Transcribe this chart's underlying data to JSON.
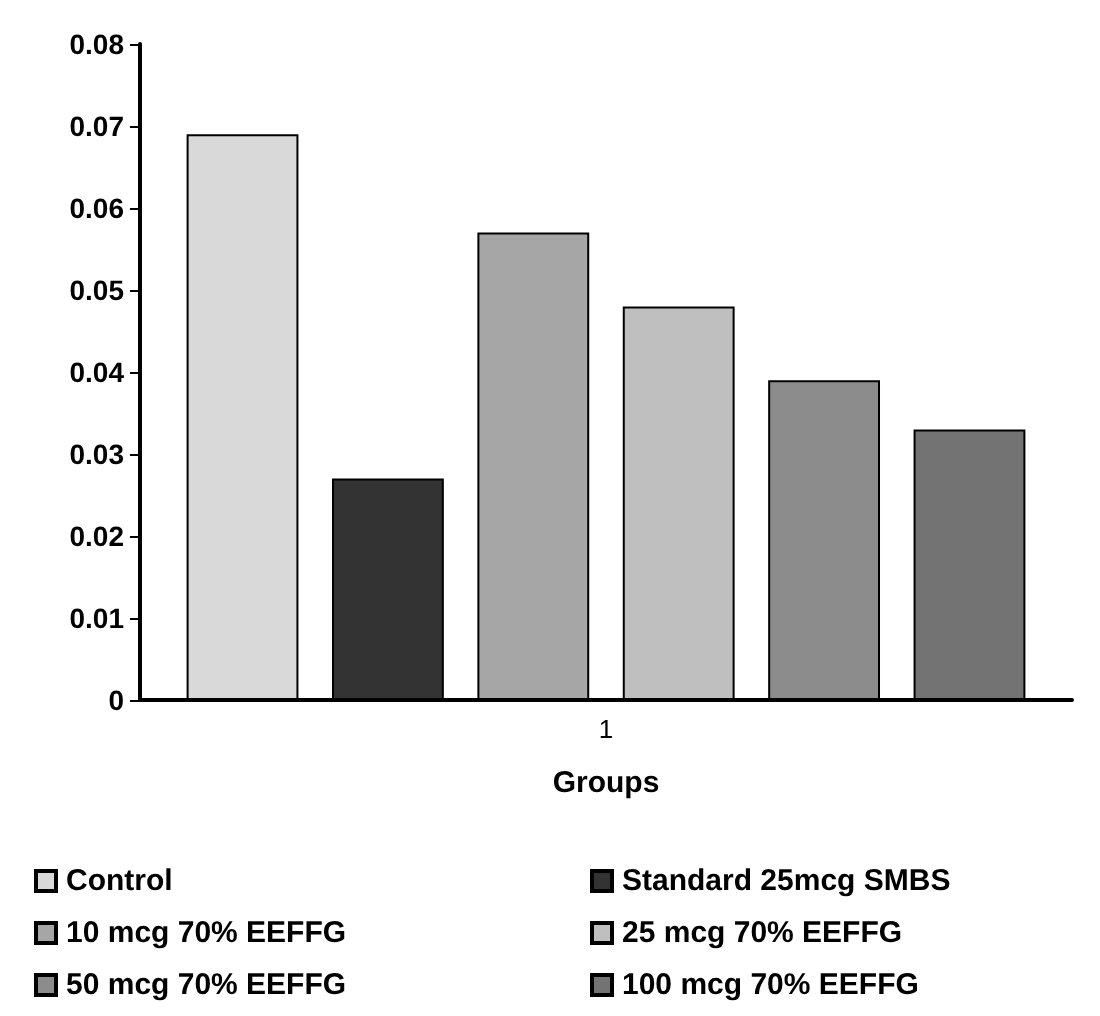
{
  "chart_data": {
    "type": "bar",
    "xlabel": "Groups",
    "categories": [
      "1"
    ],
    "series": [
      {
        "name": "Control",
        "color": "#d9d9d9",
        "values": [
          0.069
        ]
      },
      {
        "name": "Standard 25mcg SMBS",
        "color": "#333333",
        "values": [
          0.027
        ]
      },
      {
        "name": "10 mcg 70% EEFFG",
        "color": "#a6a6a6",
        "values": [
          0.057
        ]
      },
      {
        "name": "25 mcg 70% EEFFG",
        "color": "#bfbfbf",
        "values": [
          0.048
        ]
      },
      {
        "name": "50 mcg 70% EEFFG",
        "color": "#8c8c8c",
        "values": [
          0.039
        ]
      },
      {
        "name": "100 mcg 70% EEFFG",
        "color": "#737373",
        "values": [
          0.033
        ]
      }
    ],
    "ylim": [
      0,
      0.08
    ],
    "yticks": [
      0,
      0.01,
      0.02,
      0.03,
      0.04,
      0.05,
      0.06,
      0.07,
      0.08
    ],
    "grid": false,
    "legend": "bottom"
  }
}
